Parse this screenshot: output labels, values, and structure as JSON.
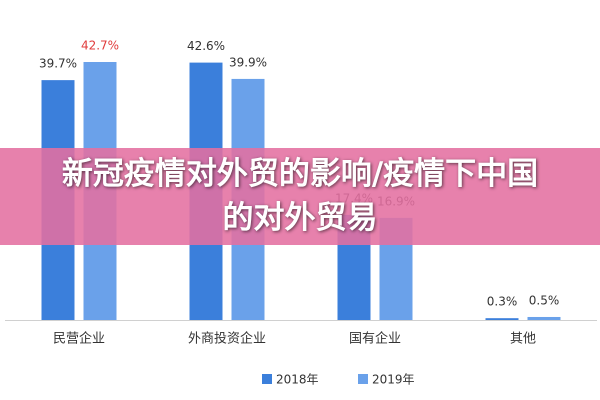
{
  "chart_data": {
    "type": "bar",
    "title": "新冠疫情对外贸的影响/疫情下中国的对外贸易",
    "categories": [
      "民营企业",
      "外商投资企业",
      "国有企业",
      "其他"
    ],
    "series": [
      {
        "name": "2018年",
        "color": "#3b7fdb",
        "values": [
          39.7,
          42.6,
          17.4,
          0.3
        ],
        "value_labels": [
          "39.7%",
          "42.6%",
          "17.4%",
          "0.3%"
        ],
        "label_colors": [
          "#333333",
          "#333333",
          "#333333",
          "#333333"
        ]
      },
      {
        "name": "2019年",
        "color": "#6aa1ea",
        "values": [
          42.7,
          39.9,
          16.9,
          0.5
        ],
        "value_labels": [
          "42.7%",
          "39.9%",
          "16.9%",
          "0.5%"
        ],
        "label_colors": [
          "#e03c3c",
          "#333333",
          "#333333",
          "#333333"
        ]
      }
    ],
    "legend": "bottom"
  }
}
